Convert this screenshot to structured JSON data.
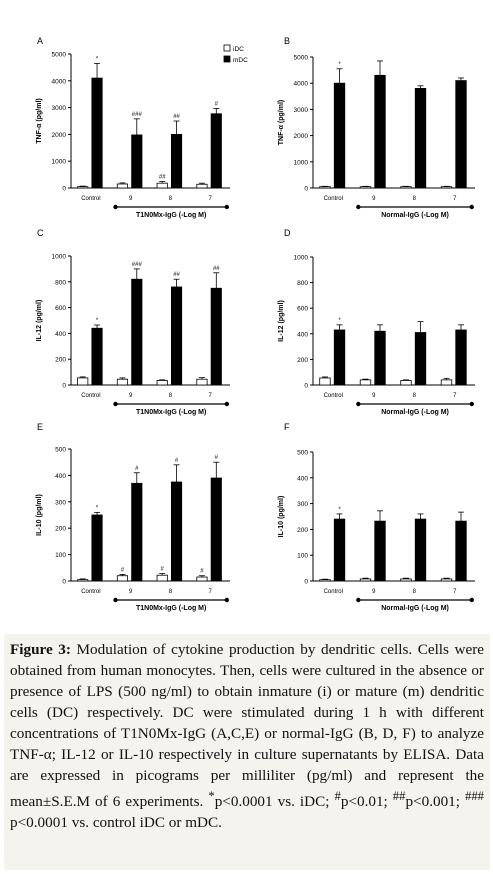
{
  "chart_data": [
    {
      "panel": "A",
      "type": "bar",
      "ylabel": "TNF-α (pg/ml)",
      "ylim": [
        0,
        5000
      ],
      "yticks": [
        0,
        1000,
        2000,
        3000,
        4000,
        5000
      ],
      "categories": [
        "Control",
        "9",
        "8",
        "7"
      ],
      "group_label": "T1N0Mx-IgG (-Log M)",
      "series": [
        {
          "name": "iDC",
          "values": [
            50,
            150,
            180,
            140
          ],
          "errors": [
            20,
            40,
            60,
            40
          ],
          "annotations": [
            "",
            "",
            "##",
            ""
          ]
        },
        {
          "name": "mDC",
          "values": [
            4100,
            1980,
            2000,
            2770
          ],
          "errors": [
            550,
            600,
            500,
            200
          ],
          "annotations": [
            "*",
            "###",
            "##",
            "#"
          ]
        }
      ],
      "legend": {
        "position": "top-right",
        "entries": [
          "iDC",
          "mDC"
        ]
      }
    },
    {
      "panel": "B",
      "type": "bar",
      "ylabel": "TNF-α (pg/ml)",
      "ylim": [
        0,
        5000
      ],
      "yticks": [
        0,
        1000,
        2000,
        3000,
        4000,
        5000
      ],
      "categories": [
        "Control",
        "9",
        "8",
        "7"
      ],
      "group_label": "Normal-IgG (-Log M)",
      "series": [
        {
          "name": "iDC",
          "values": [
            50,
            50,
            50,
            50
          ],
          "errors": [
            15,
            15,
            15,
            15
          ],
          "annotations": [
            "",
            "",
            "",
            ""
          ]
        },
        {
          "name": "mDC",
          "values": [
            4000,
            4300,
            3800,
            4100
          ],
          "errors": [
            550,
            550,
            100,
            100
          ],
          "annotations": [
            "*",
            "",
            "",
            ""
          ]
        }
      ]
    },
    {
      "panel": "C",
      "type": "bar",
      "ylabel": "IL-12 (pg/ml)",
      "ylim": [
        0,
        1000
      ],
      "yticks": [
        0,
        200,
        400,
        600,
        800,
        1000
      ],
      "categories": [
        "Control",
        "9",
        "8",
        "7"
      ],
      "group_label": "T1N0Mx-IgG (-Log M)",
      "series": [
        {
          "name": "iDC",
          "values": [
            55,
            45,
            35,
            45
          ],
          "errors": [
            8,
            10,
            5,
            12
          ],
          "annotations": [
            "",
            "",
            "",
            ""
          ]
        },
        {
          "name": "mDC",
          "values": [
            440,
            820,
            760,
            750
          ],
          "errors": [
            25,
            80,
            60,
            120
          ],
          "annotations": [
            "*",
            "###",
            "##",
            "##"
          ]
        }
      ]
    },
    {
      "panel": "D",
      "type": "bar",
      "ylabel": "IL-12 (pg/ml)",
      "ylim": [
        0,
        1000
      ],
      "yticks": [
        0,
        200,
        400,
        600,
        800,
        1000
      ],
      "categories": [
        "Control",
        "9",
        "8",
        "7"
      ],
      "group_label": "Normal-IgG (-Log M)",
      "series": [
        {
          "name": "iDC",
          "values": [
            55,
            40,
            35,
            40
          ],
          "errors": [
            8,
            6,
            5,
            12
          ],
          "annotations": [
            "",
            "",
            "",
            ""
          ]
        },
        {
          "name": "mDC",
          "values": [
            430,
            420,
            410,
            430
          ],
          "errors": [
            40,
            50,
            85,
            40
          ],
          "annotations": [
            "*",
            "",
            "",
            ""
          ]
        }
      ]
    },
    {
      "panel": "E",
      "type": "bar",
      "ylabel": "IL-10 (pg/ml)",
      "ylim": [
        0,
        500
      ],
      "yticks": [
        0,
        100,
        200,
        300,
        400,
        500
      ],
      "categories": [
        "Control",
        "9",
        "8",
        "7"
      ],
      "group_label": "T1N0Mx-IgG (-Log M)",
      "series": [
        {
          "name": "iDC",
          "values": [
            5,
            20,
            22,
            15
          ],
          "errors": [
            3,
            5,
            6,
            5
          ],
          "annotations": [
            "",
            "#",
            "#",
            "#"
          ]
        },
        {
          "name": "mDC",
          "values": [
            250,
            370,
            375,
            390
          ],
          "errors": [
            10,
            40,
            65,
            60
          ],
          "annotations": [
            "*",
            "#",
            "#",
            "#"
          ]
        }
      ]
    },
    {
      "panel": "F",
      "type": "bar",
      "ylabel": "IL-10 (pg/ml)",
      "ylim": [
        0,
        500
      ],
      "yticks": [
        0,
        100,
        200,
        300,
        400,
        500
      ],
      "categories": [
        "Control",
        "9",
        "8",
        "7"
      ],
      "group_label": "Normal-IgG (-Log M)",
      "series": [
        {
          "name": "iDC",
          "values": [
            5,
            8,
            8,
            8
          ],
          "errors": [
            2,
            3,
            3,
            3
          ],
          "annotations": [
            "",
            "",
            "",
            ""
          ]
        },
        {
          "name": "mDC",
          "values": [
            240,
            232,
            240,
            232
          ],
          "errors": [
            20,
            40,
            20,
            35
          ],
          "annotations": [
            "*",
            "",
            "",
            ""
          ]
        }
      ]
    }
  ],
  "caption": {
    "label": "Figure 3:",
    "html": "Modulation of cytokine production by dendritic cells. Cells were obtained from human monocytes. Then, cells were cultured in the absence or presence of LPS (500 ng/ml) to obtain inmature (i) or mature (m) dendritic cells (DC) respectively. DC were stimulated during 1 h with different concentrations of T1N0Mx-IgG (A,C,E) or normal-IgG (B, D, F) to analyze TNF-α; IL-12 or IL-10 respectively in culture supernatants by ELISA. Data are expressed in picograms per milliliter (pg/ml) and represent the mean±S.E.M of 6 experiments. <sup>*</sup>p&lt;0.0001 vs. iDC; <sup>#</sup>p&lt;0.01; <sup>##</sup>p&lt;0.001; <sup>###</sup> p&lt;0.0001 vs. control iDC or mDC."
  }
}
